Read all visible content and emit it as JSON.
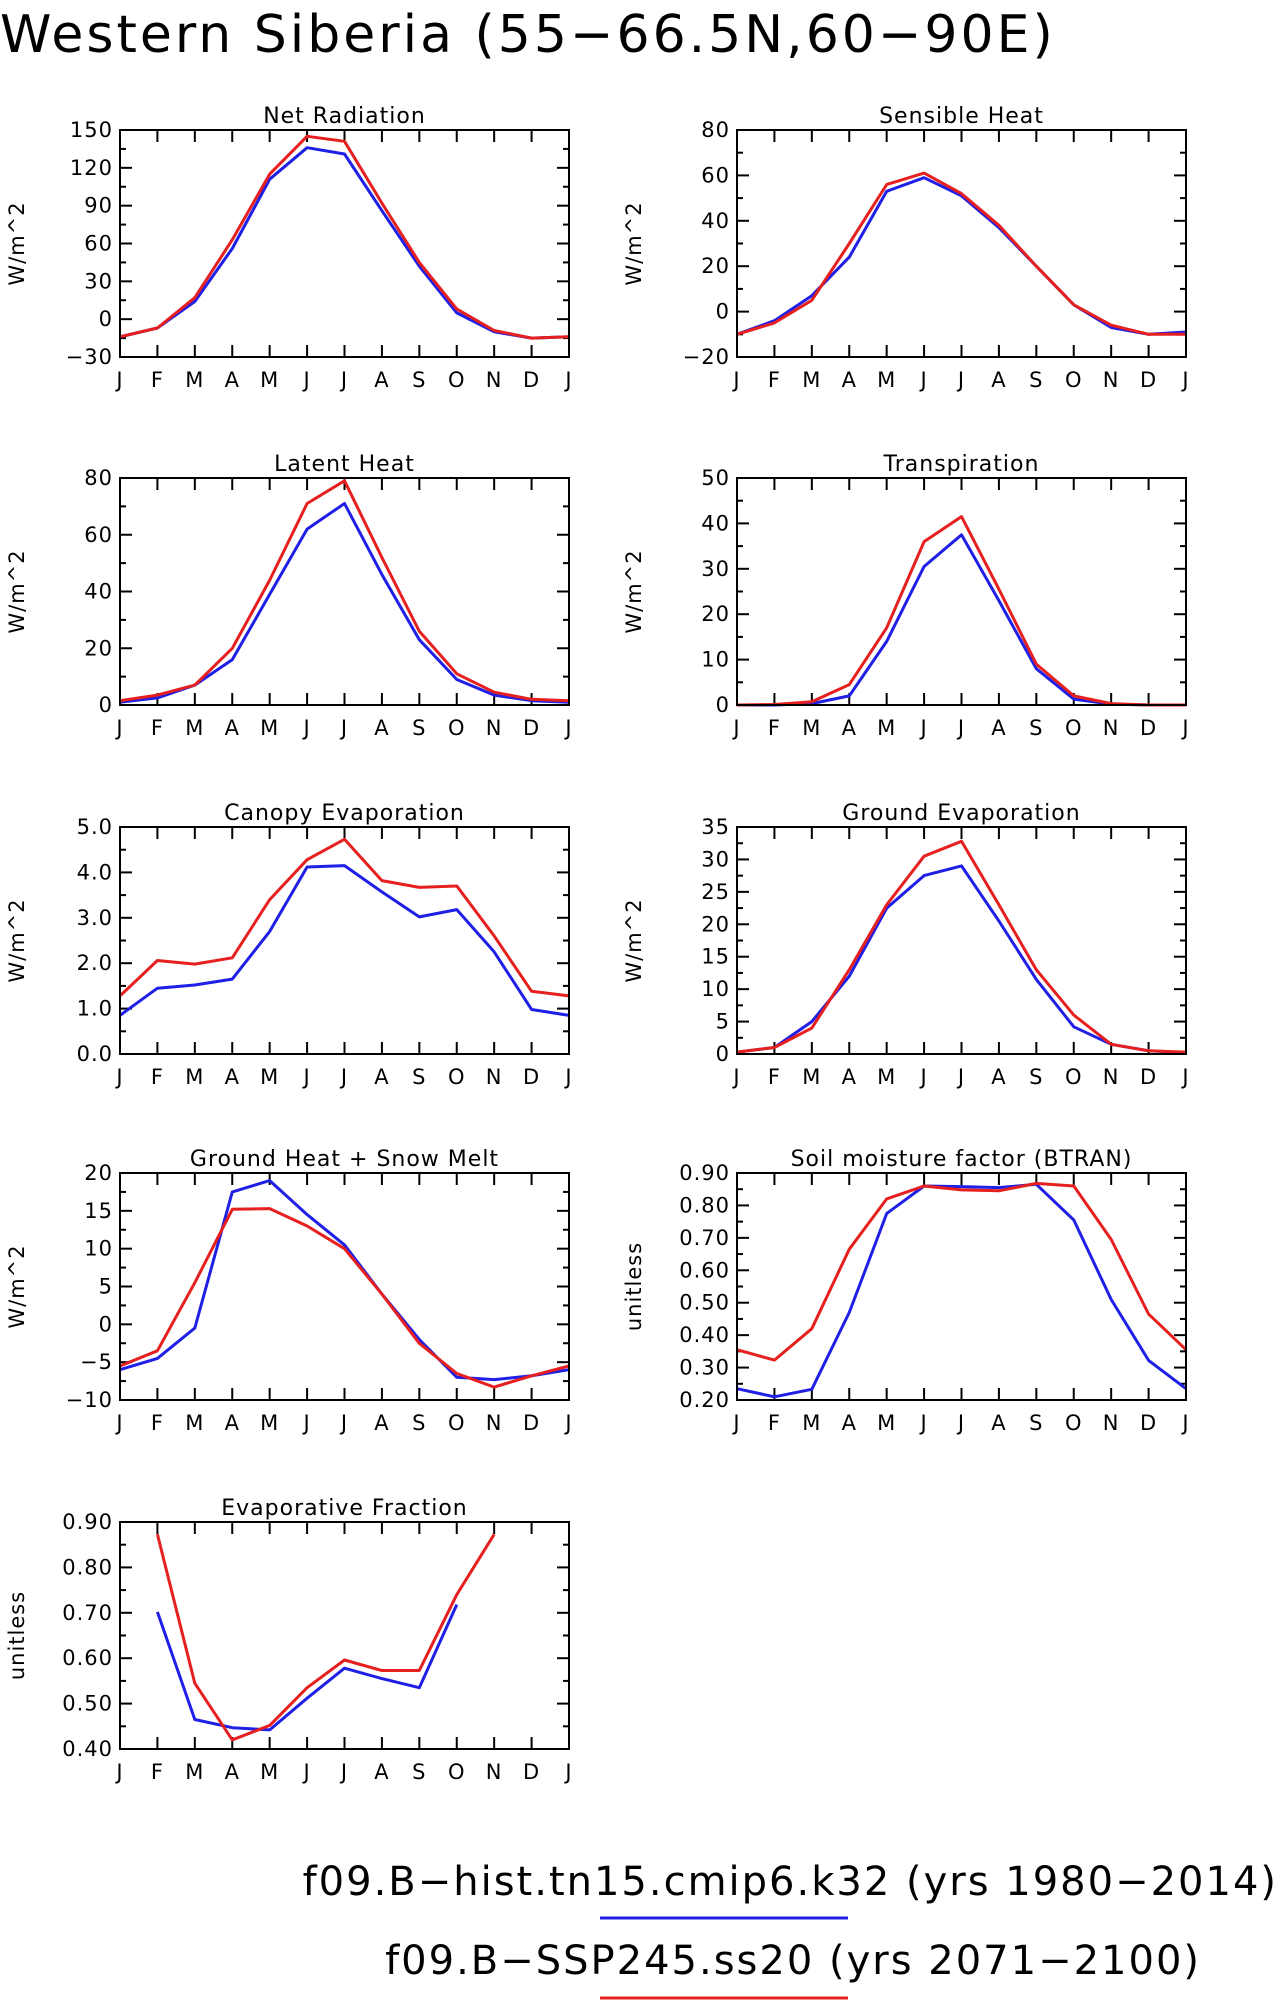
{
  "figure": {
    "title": "Western Siberia (55−66.5N,60−90E)"
  },
  "legend": [
    {
      "label": "f09.B−hist.tn15.cmip6.k32 (yrs 1980−2014)",
      "color": "#1f1fe6"
    },
    {
      "label": "f09.B−SSP245.ss20 (yrs 2071−2100)",
      "color": "#e61f1f"
    }
  ],
  "chart_data": [
    {
      "type": "line",
      "title": "Net Radiation",
      "ylabel": "W/m^2",
      "ylim": [
        -30,
        150
      ],
      "yticks": [
        -30,
        0,
        30,
        60,
        90,
        120,
        150
      ],
      "ytick_labels": [
        "−30",
        "0",
        "30",
        "60",
        "90",
        "120",
        "150"
      ],
      "x": [
        "J",
        "F",
        "M",
        "A",
        "M",
        "J",
        "J",
        "A",
        "S",
        "O",
        "N",
        "D",
        "J"
      ],
      "series": [
        {
          "color": "#1f1fe6",
          "values": [
            -14,
            -7,
            14,
            56,
            111,
            136,
            131,
            86,
            42,
            5,
            -10,
            -15,
            -14
          ]
        },
        {
          "color": "#e61f1f",
          "values": [
            -14,
            -7,
            17,
            63,
            115,
            145,
            141,
            92,
            45,
            8,
            -9,
            -15,
            -14
          ]
        }
      ]
    },
    {
      "type": "line",
      "title": "Sensible Heat",
      "ylabel": "W/m^2",
      "ylim": [
        -20,
        80
      ],
      "yticks": [
        -20,
        0,
        20,
        40,
        60,
        80
      ],
      "ytick_labels": [
        "−20",
        "0",
        "20",
        "40",
        "60",
        "80"
      ],
      "x": [
        "J",
        "F",
        "M",
        "A",
        "M",
        "J",
        "J",
        "A",
        "S",
        "O",
        "N",
        "D",
        "J"
      ],
      "series": [
        {
          "color": "#1f1fe6",
          "values": [
            -10,
            -4,
            7,
            24,
            53,
            59,
            51,
            37,
            20,
            3,
            -7,
            -10,
            -9
          ]
        },
        {
          "color": "#e61f1f",
          "values": [
            -10,
            -5,
            5,
            30,
            56,
            61,
            52,
            38,
            20,
            3,
            -6,
            -10,
            -10
          ]
        }
      ]
    },
    {
      "type": "line",
      "title": "Latent Heat",
      "ylabel": "W/m^2",
      "ylim": [
        0,
        80
      ],
      "yticks": [
        0,
        20,
        40,
        60,
        80
      ],
      "ytick_labels": [
        "0",
        "20",
        "40",
        "60",
        "80"
      ],
      "x": [
        "J",
        "F",
        "M",
        "A",
        "M",
        "J",
        "J",
        "A",
        "S",
        "O",
        "N",
        "D",
        "J"
      ],
      "series": [
        {
          "color": "#1f1fe6",
          "values": [
            1,
            2.5,
            7,
            16,
            39,
            62,
            71,
            46,
            23,
            9,
            3.5,
            1.5,
            1
          ]
        },
        {
          "color": "#e61f1f",
          "values": [
            1.5,
            3.5,
            7,
            20,
            44,
            71,
            79,
            52,
            26,
            11,
            4.5,
            2,
            1.5
          ]
        }
      ]
    },
    {
      "type": "line",
      "title": "Transpiration",
      "ylabel": "W/m^2",
      "ylim": [
        0,
        50
      ],
      "yticks": [
        0,
        10,
        20,
        30,
        40,
        50
      ],
      "ytick_labels": [
        "0",
        "10",
        "20",
        "30",
        "40",
        "50"
      ],
      "x": [
        "J",
        "F",
        "M",
        "A",
        "M",
        "J",
        "J",
        "A",
        "S",
        "O",
        "N",
        "D",
        "J"
      ],
      "series": [
        {
          "color": "#1f1fe6",
          "values": [
            0,
            0,
            0.3,
            2,
            14,
            30.5,
            37.5,
            23,
            8,
            1.3,
            0.2,
            0,
            0
          ]
        },
        {
          "color": "#e61f1f",
          "values": [
            0,
            0.1,
            0.7,
            4.5,
            17,
            36,
            41.5,
            25.5,
            9,
            2,
            0.3,
            0,
            0
          ]
        }
      ]
    },
    {
      "type": "line",
      "title": "Canopy Evaporation",
      "ylabel": "W/m^2",
      "ylim": [
        0,
        5
      ],
      "yticks": [
        0,
        1,
        2,
        3,
        4,
        5
      ],
      "ytick_labels": [
        "0.0",
        "1.0",
        "2.0",
        "3.0",
        "4.0",
        "5.0"
      ],
      "x": [
        "J",
        "F",
        "M",
        "A",
        "M",
        "J",
        "J",
        "A",
        "S",
        "O",
        "N",
        "D",
        "J"
      ],
      "series": [
        {
          "color": "#1f1fe6",
          "values": [
            0.85,
            1.45,
            1.52,
            1.65,
            2.7,
            4.12,
            4.15,
            3.57,
            3.02,
            3.18,
            2.25,
            0.98,
            0.85
          ]
        },
        {
          "color": "#e61f1f",
          "values": [
            1.28,
            2.06,
            1.98,
            2.12,
            3.4,
            4.28,
            4.73,
            3.82,
            3.67,
            3.7,
            2.6,
            1.38,
            1.28
          ]
        }
      ]
    },
    {
      "type": "line",
      "title": "Ground Evaporation",
      "ylabel": "W/m^2",
      "ylim": [
        0,
        35
      ],
      "yticks": [
        0,
        5,
        10,
        15,
        20,
        25,
        30,
        35
      ],
      "ytick_labels": [
        "0",
        "5",
        "10",
        "15",
        "20",
        "25",
        "30",
        "35"
      ],
      "x": [
        "J",
        "F",
        "M",
        "A",
        "M",
        "J",
        "J",
        "A",
        "S",
        "O",
        "N",
        "D",
        "J"
      ],
      "series": [
        {
          "color": "#1f1fe6",
          "values": [
            0.3,
            1,
            5,
            12,
            22.5,
            27.5,
            29,
            20.5,
            11.5,
            4.2,
            1.5,
            0.5,
            0.2
          ]
        },
        {
          "color": "#e61f1f",
          "values": [
            0.3,
            1,
            4,
            13,
            23,
            30.5,
            32.8,
            23,
            13,
            6,
            1.5,
            0.5,
            0.3
          ]
        }
      ]
    },
    {
      "type": "line",
      "title": "Ground Heat + Snow Melt",
      "ylabel": "W/m^2",
      "ylim": [
        -10,
        20
      ],
      "yticks": [
        -10,
        -5,
        0,
        5,
        10,
        15,
        20
      ],
      "ytick_labels": [
        "−10",
        "−5",
        "0",
        "5",
        "10",
        "15",
        "20"
      ],
      "x": [
        "J",
        "F",
        "M",
        "A",
        "M",
        "J",
        "J",
        "A",
        "S",
        "O",
        "N",
        "D",
        "J"
      ],
      "series": [
        {
          "color": "#1f1fe6",
          "values": [
            -6,
            -4.5,
            -0.5,
            17.5,
            19,
            14.5,
            10.5,
            4,
            -2,
            -7,
            -7.3,
            -6.8,
            -6
          ]
        },
        {
          "color": "#e61f1f",
          "values": [
            -5.5,
            -3.5,
            5.5,
            15.2,
            15.3,
            13,
            10,
            4,
            -2.5,
            -6.5,
            -8.3,
            -6.8,
            -5.5
          ]
        }
      ]
    },
    {
      "type": "line",
      "title": "Soil moisture factor (BTRAN)",
      "ylabel": "unitless",
      "ylim": [
        0.2,
        0.9
      ],
      "yticks": [
        0.2,
        0.3,
        0.4,
        0.5,
        0.6,
        0.7,
        0.8,
        0.9
      ],
      "ytick_labels": [
        "0.20",
        "0.30",
        "0.40",
        "0.50",
        "0.60",
        "0.70",
        "0.80",
        "0.90"
      ],
      "x": [
        "J",
        "F",
        "M",
        "A",
        "M",
        "J",
        "J",
        "A",
        "S",
        "O",
        "N",
        "D",
        "J"
      ],
      "series": [
        {
          "color": "#1f1fe6",
          "values": [
            0.235,
            0.21,
            0.233,
            0.47,
            0.775,
            0.86,
            0.858,
            0.855,
            0.865,
            0.755,
            0.51,
            0.322,
            0.235
          ]
        },
        {
          "color": "#e61f1f",
          "values": [
            0.355,
            0.323,
            0.42,
            0.665,
            0.82,
            0.86,
            0.848,
            0.845,
            0.868,
            0.86,
            0.695,
            0.465,
            0.355
          ]
        }
      ]
    },
    {
      "type": "line",
      "title": "Evaporative Fraction",
      "ylabel": "unitless",
      "ylim": [
        0.4,
        0.9
      ],
      "yticks": [
        0.4,
        0.5,
        0.6,
        0.7,
        0.8,
        0.9
      ],
      "ytick_labels": [
        "0.40",
        "0.50",
        "0.60",
        "0.70",
        "0.80",
        "0.90"
      ],
      "x": [
        "J",
        "F",
        "M",
        "A",
        "M",
        "J",
        "J",
        "A",
        "S",
        "O",
        "N",
        "D",
        "J"
      ],
      "series": [
        {
          "color": "#1f1fe6",
          "values": [
            null,
            0.702,
            0.465,
            0.447,
            0.442,
            0.512,
            0.578,
            0.555,
            0.535,
            0.718,
            null,
            null,
            null
          ]
        },
        {
          "color": "#e61f1f",
          "values": [
            null,
            0.873,
            0.545,
            0.42,
            0.452,
            0.535,
            0.596,
            0.573,
            0.573,
            0.74,
            0.873,
            null,
            null
          ]
        }
      ]
    }
  ]
}
